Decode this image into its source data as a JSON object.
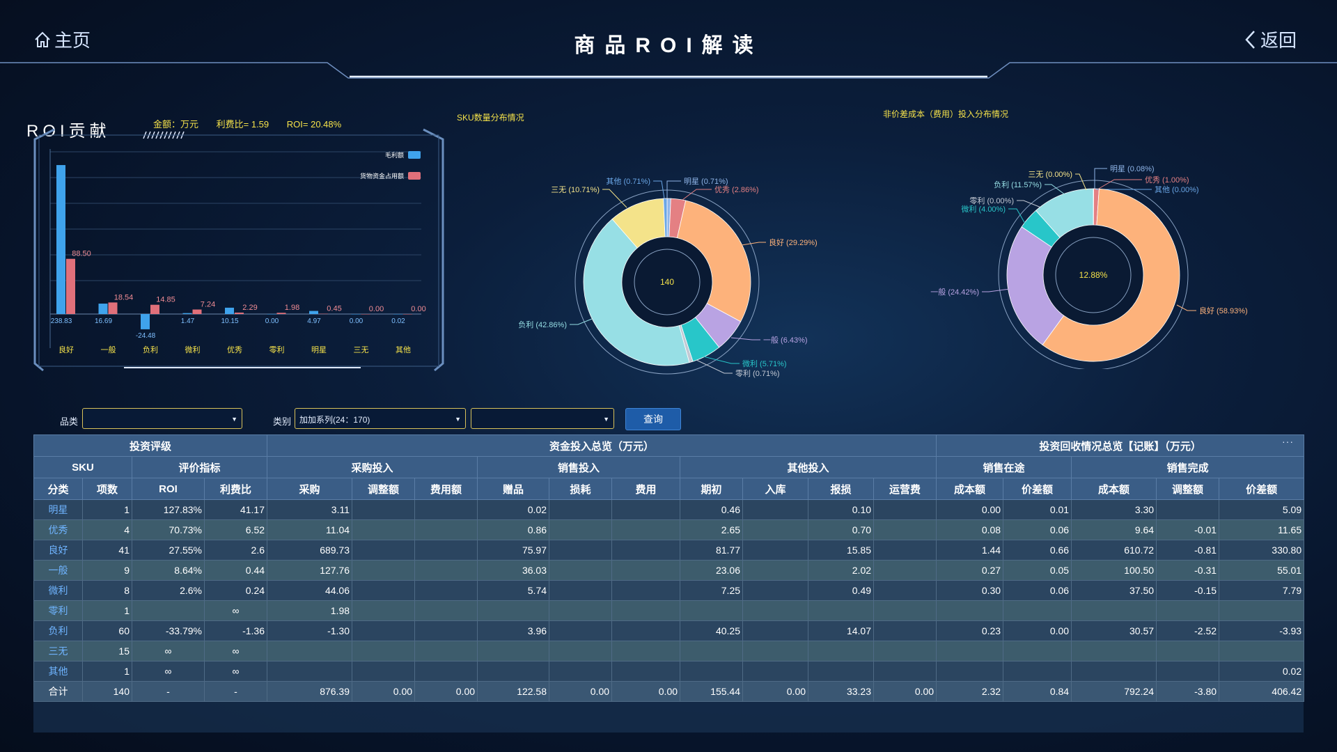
{
  "nav": {
    "home_label": "主页",
    "back_label": "返回",
    "title": "商品ROI解读"
  },
  "roi": {
    "title": "ROI贡献",
    "amount_unit": "金额：万元",
    "profit_ratio": "利费比= 1.59",
    "roi_value": "ROI= 20.48%"
  },
  "pie1_title": "SKU数量分布情况",
  "pie2_title": "非价差成本（费用）投入分布情况",
  "filters": {
    "category_label": "品类",
    "category_value": "",
    "type_label": "类别",
    "type_value": "加加系列(24：170)",
    "extra_value": "",
    "query_label": "查询"
  },
  "chart_data": [
    {
      "type": "bar",
      "categories": [
        "良好",
        "一般",
        "负利",
        "微利",
        "优秀",
        "零利",
        "明星",
        "三无",
        "其他"
      ],
      "series": [
        {
          "name": "毛利额",
          "color": "#3fa3ec",
          "values": [
            238.83,
            16.69,
            -24.48,
            1.47,
            10.15,
            0.0,
            4.97,
            0.0,
            0.02
          ]
        },
        {
          "name": "货物资金占用额",
          "color": "#e0707a",
          "values": [
            88.5,
            18.54,
            14.85,
            7.24,
            2.29,
            1.98,
            0.45,
            0.0,
            0.0
          ]
        }
      ],
      "ylim": [
        -30,
        240
      ]
    },
    {
      "type": "pie",
      "center_label": "140",
      "slices": [
        {
          "label": "明星 (0.71%)",
          "value": 0.71,
          "color": "#8fb5e8"
        },
        {
          "label": "优秀 (2.86%)",
          "value": 2.86,
          "color": "#e48083"
        },
        {
          "label": "良好 (29.29%)",
          "value": 29.29,
          "color": "#fdb27b"
        },
        {
          "label": "一般 (6.43%)",
          "value": 6.43,
          "color": "#b9a3e3"
        },
        {
          "label": "微利 (5.71%)",
          "value": 5.71,
          "color": "#28c6c9"
        },
        {
          "label": "零利 (0.71%)",
          "value": 0.71,
          "color": "#c3c9d4"
        },
        {
          "label": "负利 (42.86%)",
          "value": 42.86,
          "color": "#97dfe5"
        },
        {
          "label": "三无 (10.71%)",
          "value": 10.71,
          "color": "#f4e38a"
        },
        {
          "label": "其他 (0.71%)",
          "value": 0.71,
          "color": "#6aa6e6"
        }
      ]
    },
    {
      "type": "pie",
      "center_label": "12.88%",
      "slices": [
        {
          "label": "明星 (0.08%)",
          "value": 0.08,
          "color": "#8fb5e8"
        },
        {
          "label": "优秀 (1.00%)",
          "value": 1.0,
          "color": "#e48083"
        },
        {
          "label": "其他 (0.00%)",
          "value": 0.0,
          "color": "#6aa6e6"
        },
        {
          "label": "良好 (58.93%)",
          "value": 58.93,
          "color": "#fdb27b"
        },
        {
          "label": "一般 (24.42%)",
          "value": 24.42,
          "color": "#b9a3e3"
        },
        {
          "label": "微利 (4.00%)",
          "value": 4.0,
          "color": "#28c6c9"
        },
        {
          "label": "零利 (0.00%)",
          "value": 0.0,
          "color": "#c3c9d4"
        },
        {
          "label": "负利 (11.57%)",
          "value": 11.57,
          "color": "#97dfe5"
        },
        {
          "label": "三无 (0.00%)",
          "value": 0.0,
          "color": "#f4e38a"
        }
      ]
    },
    {
      "type": "table",
      "group_headers": [
        "投资评级",
        "资金投入总览（万元）",
        "投资回收情况总览【记账】（万元）"
      ],
      "sub_headers": [
        "SKU",
        "评价指标",
        "采购投入",
        "销售投入",
        "其他投入",
        "销售在途",
        "销售完成"
      ],
      "columns": [
        "分类",
        "项数",
        "ROI",
        "利费比",
        "采购",
        "调整额",
        "费用额",
        "赠品",
        "损耗",
        "费用",
        "期初",
        "入库",
        "报损",
        "运营费",
        "成本额",
        "价差额",
        "成本额",
        "调整额",
        "价差额"
      ],
      "rows": [
        [
          "明星",
          "1",
          "127.83%",
          "41.17",
          "3.11",
          "",
          "",
          "0.02",
          "",
          "",
          "0.46",
          "",
          "0.10",
          "",
          "0.00",
          "0.01",
          "3.30",
          "",
          "5.09"
        ],
        [
          "优秀",
          "4",
          "70.73%",
          "6.52",
          "11.04",
          "",
          "",
          "0.86",
          "",
          "",
          "2.65",
          "",
          "0.70",
          "",
          "0.08",
          "0.06",
          "9.64",
          "-0.01",
          "11.65"
        ],
        [
          "良好",
          "41",
          "27.55%",
          "2.6",
          "689.73",
          "",
          "",
          "75.97",
          "",
          "",
          "81.77",
          "",
          "15.85",
          "",
          "1.44",
          "0.66",
          "610.72",
          "-0.81",
          "330.80"
        ],
        [
          "一般",
          "9",
          "8.64%",
          "0.44",
          "127.76",
          "",
          "",
          "36.03",
          "",
          "",
          "23.06",
          "",
          "2.02",
          "",
          "0.27",
          "0.05",
          "100.50",
          "-0.31",
          "55.01"
        ],
        [
          "微利",
          "8",
          "2.6%",
          "0.24",
          "44.06",
          "",
          "",
          "5.74",
          "",
          "",
          "7.25",
          "",
          "0.49",
          "",
          "0.30",
          "0.06",
          "37.50",
          "-0.15",
          "7.79"
        ],
        [
          "零利",
          "1",
          "",
          "∞",
          "1.98",
          "",
          "",
          "",
          "",
          "",
          "",
          "",
          "",
          "",
          "",
          "",
          "",
          "",
          ""
        ],
        [
          "负利",
          "60",
          "-33.79%",
          "-1.36",
          "-1.30",
          "",
          "",
          "3.96",
          "",
          "",
          "40.25",
          "",
          "14.07",
          "",
          "0.23",
          "0.00",
          "30.57",
          "-2.52",
          "-3.93"
        ],
        [
          "三无",
          "15",
          "∞",
          "∞",
          "",
          "",
          "",
          "",
          "",
          "",
          "",
          "",
          "",
          "",
          "",
          "",
          "",
          "",
          ""
        ],
        [
          "其他",
          "1",
          "∞",
          "∞",
          "",
          "",
          "",
          "",
          "",
          "",
          "",
          "",
          "",
          "",
          "",
          "",
          "",
          "",
          "0.02"
        ]
      ],
      "total": [
        "合计",
        "140",
        "-",
        "-",
        "876.39",
        "0.00",
        "0.00",
        "122.58",
        "0.00",
        "0.00",
        "155.44",
        "0.00",
        "33.23",
        "0.00",
        "2.32",
        "0.84",
        "792.24",
        "-3.80",
        "406.42"
      ],
      "more_label": "···"
    }
  ]
}
